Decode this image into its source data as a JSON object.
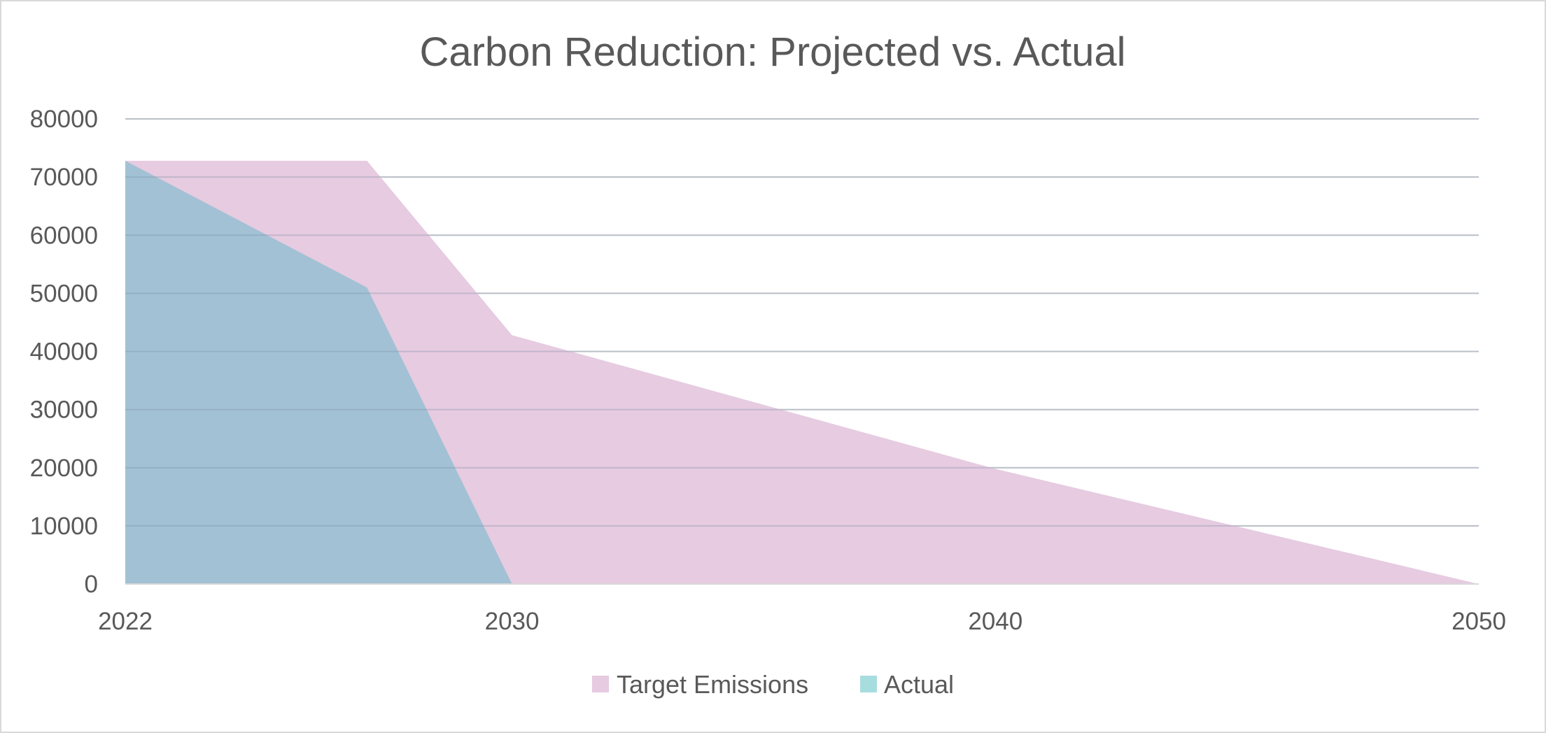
{
  "chart_data": {
    "type": "area",
    "title": "Carbon Reduction: Projected vs. Actual",
    "xlabel": "",
    "ylabel": "",
    "xlim": [
      2022,
      2050
    ],
    "ylim": [
      0,
      80000
    ],
    "x_ticks": [
      "2022",
      "2030",
      "2040",
      "2050"
    ],
    "y_ticks": [
      "0",
      "10000",
      "20000",
      "30000",
      "40000",
      "50000",
      "60000",
      "70000",
      "80000"
    ],
    "grid": true,
    "legend_position": "bottom",
    "series": [
      {
        "name": "Target Emissions",
        "color": "#e6cbe1",
        "x": [
          2022,
          2027,
          2030,
          2040,
          2050
        ],
        "values": [
          72800,
          72800,
          42800,
          19800,
          0
        ]
      },
      {
        "name": "Actual",
        "color": "#a2c1d4",
        "legend_color": "#a8dde0",
        "x": [
          2022,
          2027,
          2030
        ],
        "values": [
          72800,
          51000,
          0
        ]
      }
    ]
  }
}
